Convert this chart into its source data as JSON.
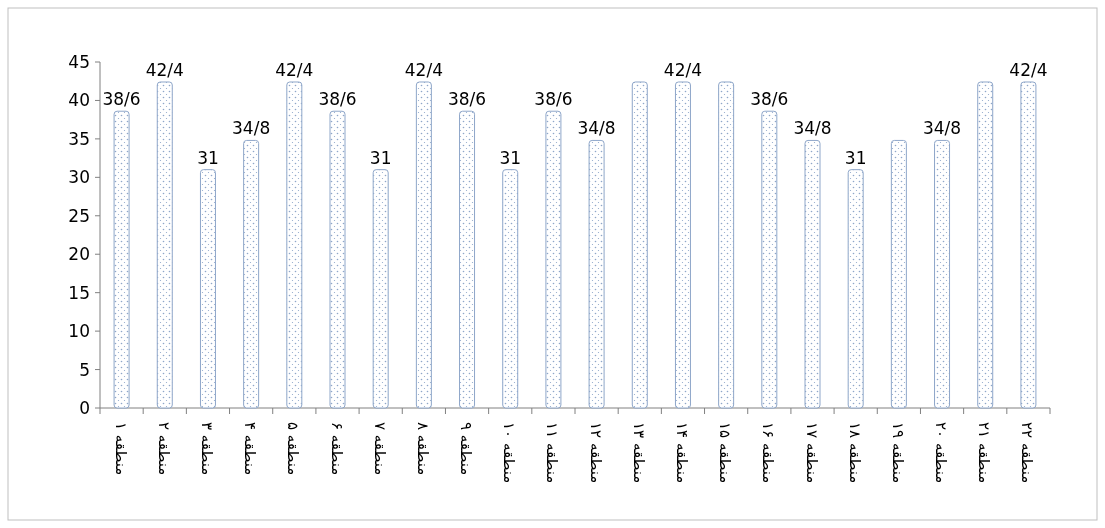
{
  "chart_data": {
    "type": "bar",
    "categories": [
      "منطقه ۱",
      "منطقه ۲",
      "منطقه ۳",
      "منطقه ۴",
      "منطقه ۵",
      "منطقه ۶",
      "منطقه ۷",
      "منطقه ۸",
      "منطقه ۹",
      "منطقه ۱۰",
      "منطقه ۱۱",
      "منطقه ۱۲",
      "منطقه ۱۳",
      "منطقه ۱۴",
      "منطقه ۱۵",
      "منطقه ۱۶",
      "منطقه ۱۷",
      "منطقه ۱۸",
      "منطقه ۱۹",
      "منطقه ۲۰",
      "منطقه ۲۱",
      "منطقه ۲۲"
    ],
    "values": [
      38.6,
      42.4,
      31,
      34.8,
      42.4,
      38.6,
      31,
      42.4,
      38.6,
      31,
      38.6,
      34.8,
      42.4,
      42.4,
      42.4,
      38.6,
      34.8,
      31,
      34.8,
      34.8,
      42.4,
      42.4
    ],
    "value_labels": [
      "38/6",
      "42/4",
      "31",
      "34/8",
      "42/4",
      "38/6",
      "31",
      "42/4",
      "38/6",
      "31",
      "38/6",
      "34/8",
      null,
      "42/4",
      null,
      "38/6",
      "34/8",
      "31",
      null,
      "34/8",
      null,
      "42/4"
    ],
    "color": "#8ea6c9",
    "ylim": [
      0,
      45
    ],
    "yticks": [
      0,
      5,
      10,
      15,
      20,
      25,
      30,
      35,
      40,
      45
    ],
    "grid": false
  }
}
